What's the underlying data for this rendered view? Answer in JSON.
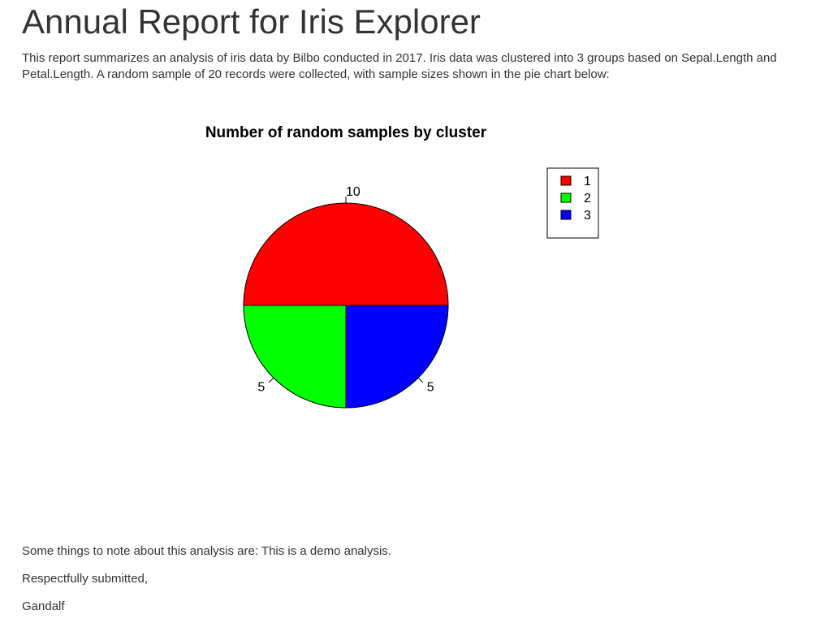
{
  "page": {
    "title": "Annual Report for Iris Explorer",
    "intro": "This report summarizes an analysis of iris data by Bilbo conducted in 2017. Iris data was clustered into 3 groups based on Sepal.Length and Petal.Length. A random sample of 20 records were collected, with sample sizes shown in the pie chart below:",
    "note": "Some things to note about this analysis are: This is a demo analysis.",
    "closing": "Respectfully submitted,",
    "signature": "Gandalf"
  },
  "chart_data": {
    "type": "pie",
    "title": "Number of random samples by cluster",
    "categories": [
      "1",
      "2",
      "3"
    ],
    "values": [
      10,
      5,
      5
    ],
    "labels": [
      "10",
      "5",
      "5"
    ],
    "colors": [
      "#ff0000",
      "#00ff00",
      "#0000ff"
    ],
    "legend": {
      "position": "top-right",
      "entries": [
        "1",
        "2",
        "3"
      ]
    }
  }
}
